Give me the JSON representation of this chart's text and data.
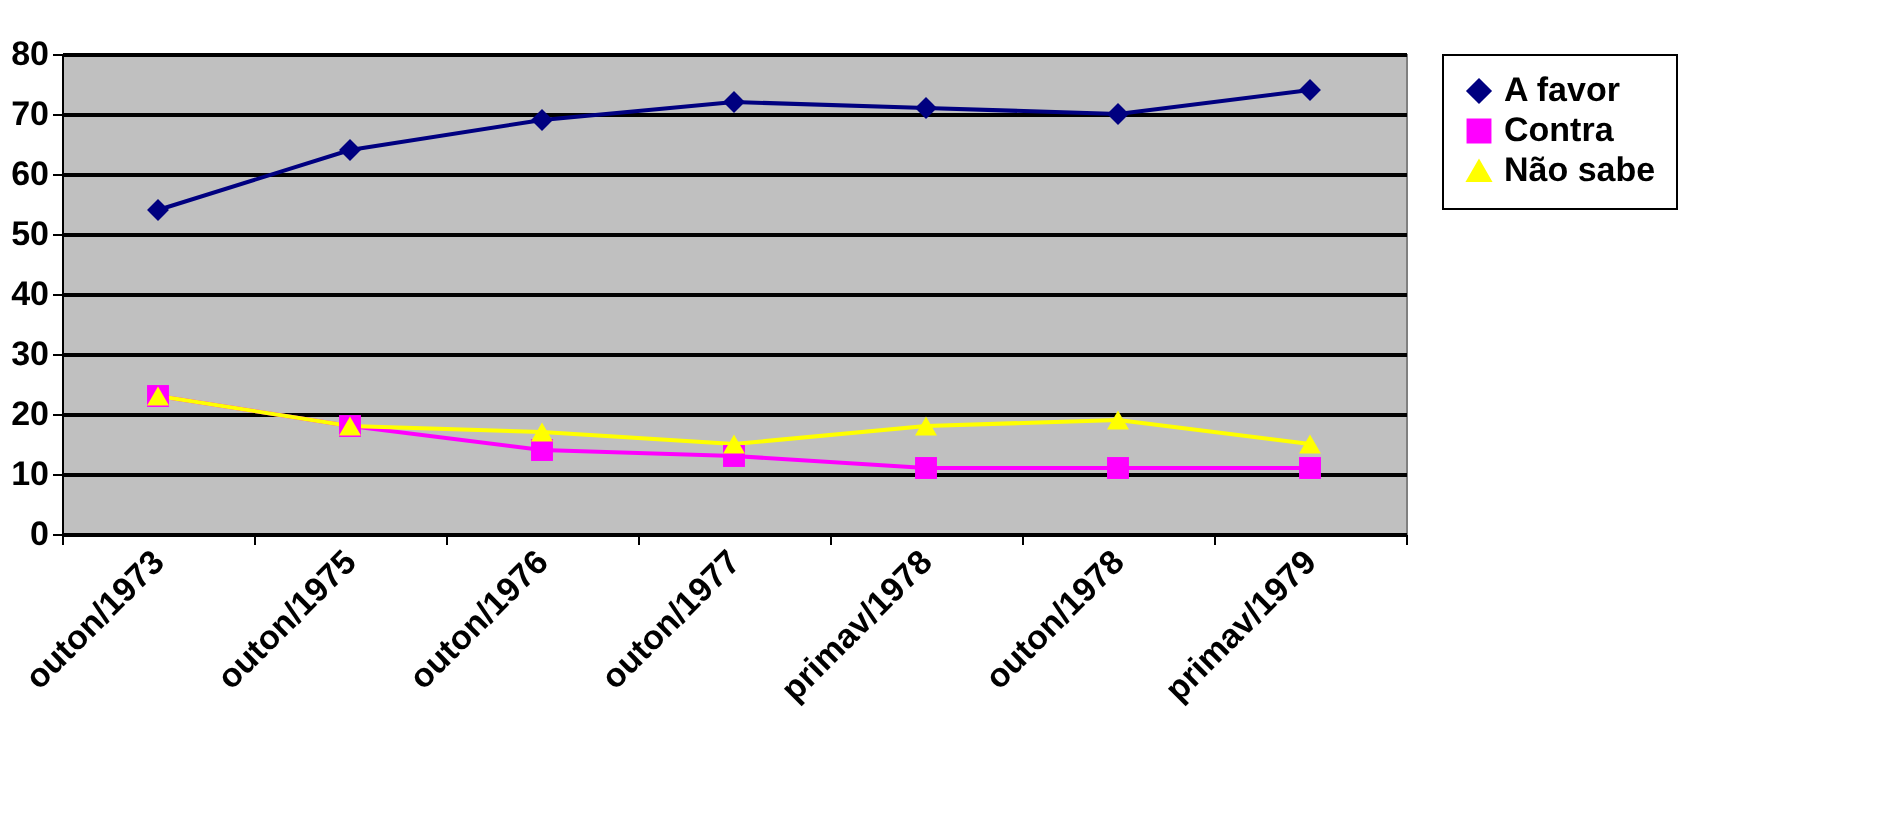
{
  "chart_data": {
    "type": "line",
    "categories": [
      "outon/1973",
      "outon/1975",
      "outon/1976",
      "outon/1977",
      "primav/1978",
      "outon/1978",
      "primav/1979"
    ],
    "series": [
      {
        "name": "A favor",
        "color": "#000080",
        "marker": "diamond",
        "values": [
          54,
          64,
          69,
          72,
          71,
          70,
          74
        ]
      },
      {
        "name": "Contra",
        "color": "#ff00ff",
        "marker": "square",
        "values": [
          23,
          18,
          14,
          13,
          11,
          11,
          11
        ]
      },
      {
        "name": "Não sabe",
        "color": "#ffff00",
        "marker": "triangle",
        "values": [
          23,
          18,
          17,
          15,
          18,
          19,
          15
        ]
      }
    ],
    "ylim": [
      0,
      80
    ],
    "yticks": [
      0,
      10,
      20,
      30,
      40,
      50,
      60,
      70,
      80
    ],
    "grid": "y",
    "legend": "right",
    "line_style": "solid"
  }
}
